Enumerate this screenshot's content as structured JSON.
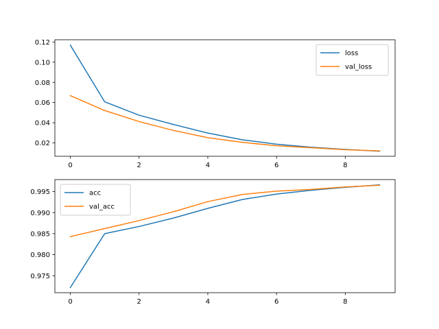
{
  "chart_data": [
    {
      "type": "line",
      "x": [
        0,
        1,
        2,
        3,
        4,
        5,
        6,
        7,
        8,
        9
      ],
      "xlim": [
        -0.45,
        9.45
      ],
      "ylim": [
        0.0068,
        0.1222
      ],
      "xticks": [
        0,
        2,
        4,
        6,
        8
      ],
      "yticks": [
        0.02,
        0.04,
        0.06,
        0.08,
        0.1,
        0.12
      ],
      "ytick_labels": [
        "0.02",
        "0.04",
        "0.06",
        "0.08",
        "0.10",
        "0.12"
      ],
      "legend_position": "upper right",
      "series": [
        {
          "name": "loss",
          "color": "#1f77b4",
          "values": [
            0.1168,
            0.0607,
            0.0475,
            0.0383,
            0.0298,
            0.0232,
            0.0188,
            0.0158,
            0.0136,
            0.0118
          ]
        },
        {
          "name": "val_loss",
          "color": "#ff7f0e",
          "values": [
            0.0668,
            0.0521,
            0.0412,
            0.0324,
            0.0252,
            0.0206,
            0.0172,
            0.0153,
            0.0133,
            0.0122
          ]
        }
      ]
    },
    {
      "type": "line",
      "x": [
        0,
        1,
        2,
        3,
        4,
        5,
        6,
        7,
        8,
        9
      ],
      "xlim": [
        -0.45,
        9.45
      ],
      "ylim": [
        0.97098,
        0.99784
      ],
      "xticks": [
        0,
        2,
        4,
        6,
        8
      ],
      "yticks": [
        0.975,
        0.98,
        0.985,
        0.99,
        0.995
      ],
      "ytick_labels": [
        "0.975",
        "0.980",
        "0.985",
        "0.990",
        "0.995"
      ],
      "legend_position": "upper left",
      "series": [
        {
          "name": "acc",
          "color": "#1f77b4",
          "values": [
            0.9722,
            0.985,
            0.9867,
            0.9887,
            0.991,
            0.9931,
            0.9944,
            0.9953,
            0.996,
            0.9966
          ]
        },
        {
          "name": "val_acc",
          "color": "#ff7f0e",
          "values": [
            0.9843,
            0.9862,
            0.9881,
            0.9902,
            0.9926,
            0.9943,
            0.9951,
            0.9955,
            0.9961,
            0.9965
          ]
        }
      ]
    }
  ]
}
